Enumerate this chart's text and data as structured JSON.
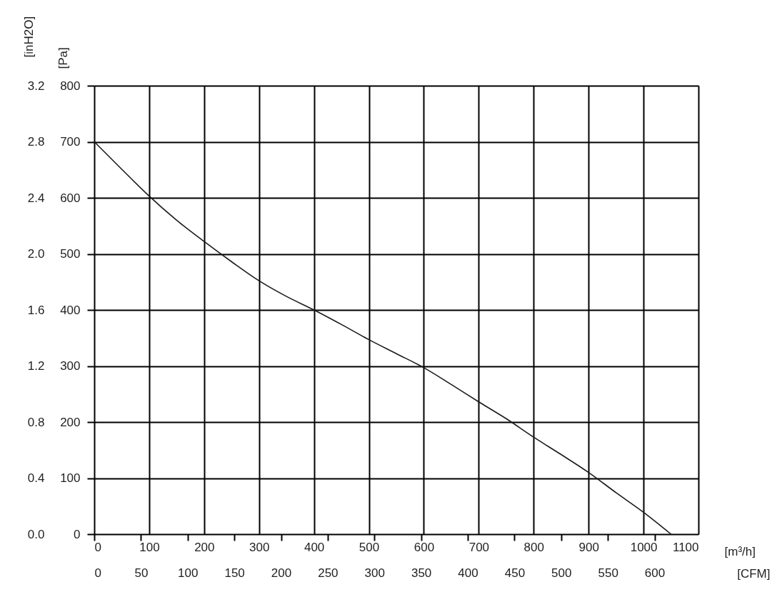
{
  "chart_data": {
    "type": "line",
    "xlabel": "[m³/h]",
    "x2label": "[CFM]",
    "ylabel": "[Pa]",
    "y2label": "[inH2O]",
    "x": [
      0,
      50,
      100,
      150,
      200,
      250,
      300,
      350,
      400,
      450,
      500,
      550,
      600,
      650,
      700,
      750,
      800,
      850,
      900,
      950,
      1000,
      1050
    ],
    "series": [
      {
        "color": "#1a1a1a",
        "values": [
          700,
          651,
          603,
          560,
          522,
          486,
          452,
          424,
          400,
          374,
          347,
          322,
          297,
          267,
          236,
          206,
          173,
          142,
          110,
          74,
          39,
          0
        ]
      }
    ],
    "xlim": [
      0,
      1100
    ],
    "xticks": [
      0,
      100,
      200,
      300,
      400,
      500,
      600,
      700,
      800,
      900,
      1000,
      1100
    ],
    "x2lim": [
      0,
      647
    ],
    "x2ticks": [
      0,
      50,
      100,
      150,
      200,
      250,
      300,
      350,
      400,
      450,
      500,
      550,
      600
    ],
    "ylim": [
      0,
      800
    ],
    "yticks": [
      0,
      100,
      200,
      300,
      400,
      500,
      600,
      700,
      800
    ],
    "y2lim": [
      0,
      3.2
    ],
    "y2ticks": [
      {
        "value": 0,
        "label": "0.0"
      },
      0.4,
      0.8,
      1.2,
      1.6,
      {
        "value": 2,
        "label": "2.0"
      },
      2.4,
      2.8,
      3.2
    ],
    "grid": true,
    "marker": "none",
    "line_style": "solid"
  }
}
